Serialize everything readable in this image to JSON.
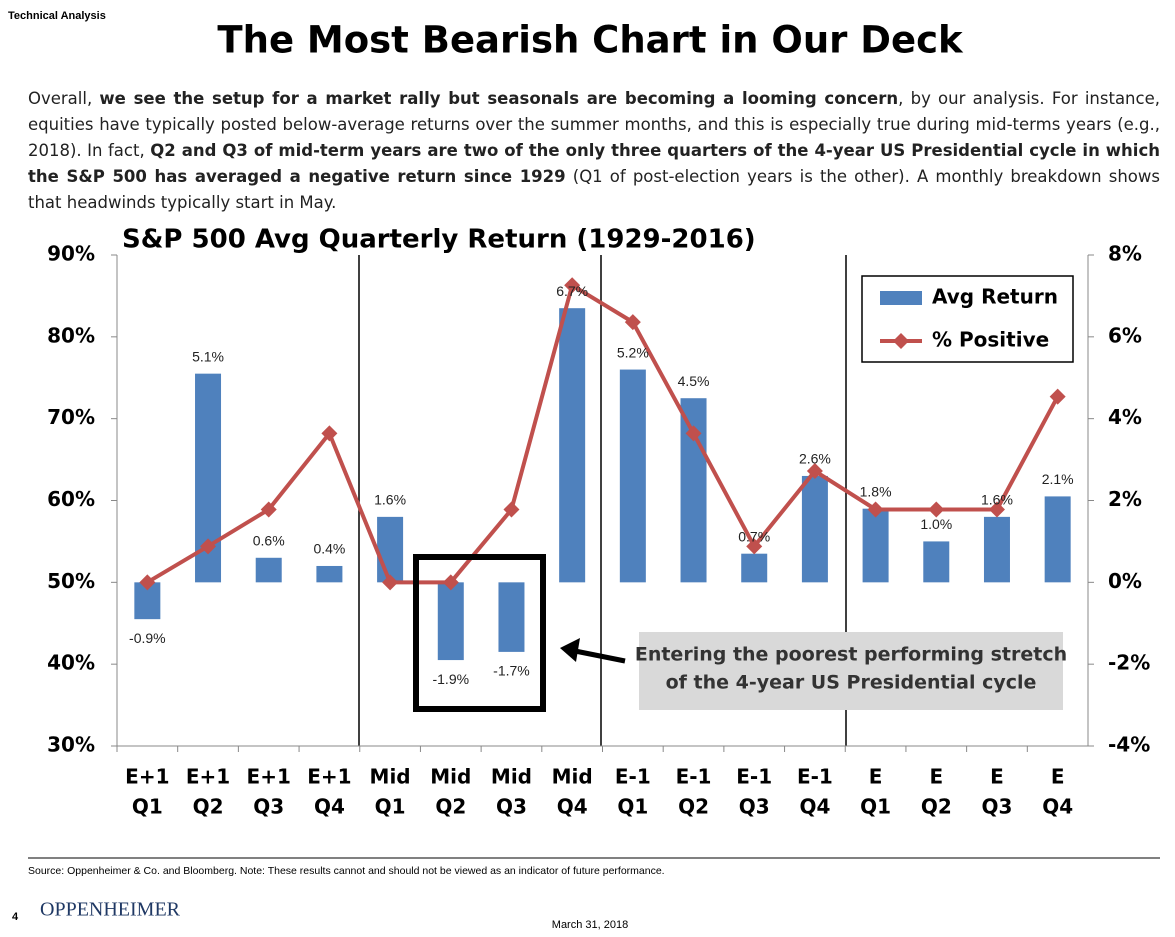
{
  "header": {
    "section": "Technical Analysis",
    "title": "The Most Bearish Chart in Our Deck"
  },
  "paragraph": [
    {
      "text": "Overall, ",
      "bold": false
    },
    {
      "text": "we see the setup for a market rally but seasonals are becoming a looming concern",
      "bold": true
    },
    {
      "text": ", by our analysis.  For instance, equities have typically posted below-average returns over the summer months, and this is especially true during mid-terms years (e.g., 2018).  In fact, ",
      "bold": false
    },
    {
      "text": "Q2 and Q3 of mid-term years are two of the only three quarters of the 4-year US Presidential cycle in which the S&P 500 has averaged a negative return since 1929",
      "bold": true
    },
    {
      "text": " (Q1 of post-election years is the other).  A monthly breakdown shows that headwinds typically start in May.",
      "bold": false
    }
  ],
  "chart_data": {
    "type": "bar-line",
    "title": "S&P 500 Avg Quarterly Return (1929-2016)",
    "categories": [
      [
        "E+1",
        "Q1"
      ],
      [
        "E+1",
        "Q2"
      ],
      [
        "E+1",
        "Q3"
      ],
      [
        "E+1",
        "Q4"
      ],
      [
        "Mid",
        "Q1"
      ],
      [
        "Mid",
        "Q2"
      ],
      [
        "Mid",
        "Q3"
      ],
      [
        "Mid",
        "Q4"
      ],
      [
        "E-1",
        "Q1"
      ],
      [
        "E-1",
        "Q2"
      ],
      [
        "E-1",
        "Q3"
      ],
      [
        "E-1",
        "Q4"
      ],
      [
        "E",
        "Q1"
      ],
      [
        "E",
        "Q2"
      ],
      [
        "E",
        "Q3"
      ],
      [
        "E",
        "Q4"
      ]
    ],
    "series": [
      {
        "name": "Avg Return",
        "type": "bar",
        "axis": "y2",
        "color": "#4f81bd",
        "values": [
          -0.9,
          5.1,
          0.6,
          0.4,
          1.6,
          -1.9,
          -1.7,
          6.7,
          5.2,
          4.5,
          0.7,
          2.6,
          1.8,
          1.0,
          1.6,
          2.1
        ],
        "value_labels": [
          "-0.9%",
          "5.1%",
          "0.6%",
          "0.4%",
          "1.6%",
          "-1.9%",
          "-1.7%",
          "6.7%",
          "5.2%",
          "4.5%",
          "0.7%",
          "2.6%",
          "1.8%",
          "1.0%",
          "1.6%",
          "2.1%"
        ]
      },
      {
        "name": "% Positive",
        "type": "line",
        "axis": "y",
        "color": "#c0504d",
        "values": [
          50,
          54.4,
          58.9,
          68.2,
          50,
          50,
          58.9,
          86.3,
          81.8,
          68.2,
          54.4,
          63.6,
          58.9,
          58.9,
          58.9,
          72.7
        ]
      }
    ],
    "ylim": [
      30,
      90
    ],
    "yticks": [
      {
        "value": 30,
        "label": "30%"
      },
      {
        "value": 40,
        "label": "40%"
      },
      {
        "value": 50,
        "label": "50%"
      },
      {
        "value": 60,
        "label": "60%"
      },
      {
        "value": 70,
        "label": "70%"
      },
      {
        "value": 80,
        "label": "80%"
      },
      {
        "value": 90,
        "label": "90%"
      }
    ],
    "y2lim": [
      -4,
      8
    ],
    "y2ticks": [
      {
        "value": -4,
        "label": "-4%"
      },
      {
        "value": -2,
        "label": "-2%"
      },
      {
        "value": 0,
        "label": "0%"
      },
      {
        "value": 2,
        "label": "2%"
      },
      {
        "value": 4,
        "label": "4%"
      },
      {
        "value": 6,
        "label": "6%"
      },
      {
        "value": 8,
        "label": "8%"
      }
    ],
    "legend": "upper right",
    "annotation": [
      "Entering the poorest performing stretch",
      "of the 4-year US Presidential cycle"
    ]
  },
  "footer": {
    "source": "Source: Oppenheimer & Co. and Bloomberg.  Note: These results cannot and should not be viewed as an indicator of future performance.",
    "page": "4",
    "logo": "OPPENHEIMER",
    "date": "March 31, 2018"
  }
}
